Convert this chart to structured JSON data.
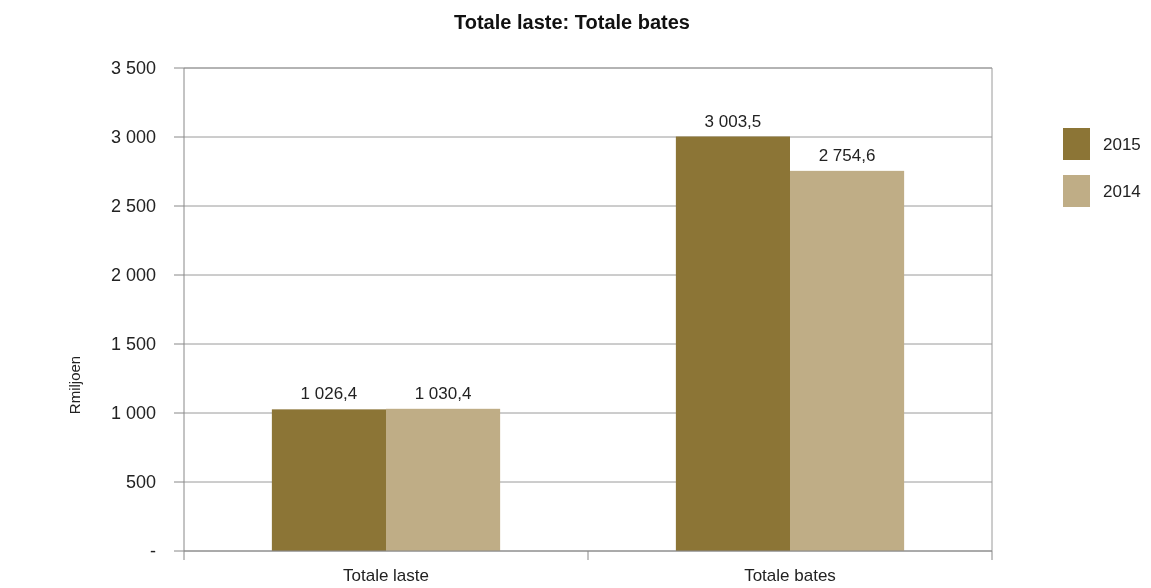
{
  "chart_data": {
    "type": "bar",
    "title": "Totale laste: Totale bates",
    "ylabel": "Rmiljoen",
    "categories": [
      "Totale laste",
      "Totale bates"
    ],
    "series": [
      {
        "name": "2015",
        "color": "#8c7536",
        "values": [
          1026.4,
          3003.5
        ],
        "value_labels": [
          "1 026,4",
          "3 003,5"
        ]
      },
      {
        "name": "2014",
        "color": "#bfad86",
        "values": [
          1030.4,
          2754.6
        ],
        "value_labels": [
          "1 030,4",
          "2 754,6"
        ]
      }
    ],
    "ylim": [
      0,
      3500
    ],
    "yticks": [
      {
        "value": 0,
        "label": "-"
      },
      {
        "value": 500,
        "label": "500"
      },
      {
        "value": 1000,
        "label": "1 000"
      },
      {
        "value": 1500,
        "label": "1 500"
      },
      {
        "value": 2000,
        "label": "2 000"
      },
      {
        "value": 2500,
        "label": "2 500"
      },
      {
        "value": 3000,
        "label": "3 000"
      },
      {
        "value": 3500,
        "label": "3 500"
      }
    ],
    "grid": "y",
    "legend": "right"
  }
}
